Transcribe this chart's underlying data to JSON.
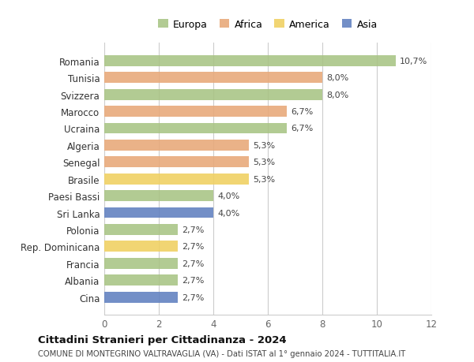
{
  "countries": [
    "Romania",
    "Tunisia",
    "Svizzera",
    "Marocco",
    "Ucraina",
    "Algeria",
    "Senegal",
    "Brasile",
    "Paesi Bassi",
    "Sri Lanka",
    "Polonia",
    "Rep. Dominicana",
    "Francia",
    "Albania",
    "Cina"
  ],
  "values": [
    10.7,
    8.0,
    8.0,
    6.7,
    6.7,
    5.3,
    5.3,
    5.3,
    4.0,
    4.0,
    2.7,
    2.7,
    2.7,
    2.7,
    2.7
  ],
  "labels": [
    "10,7%",
    "8,0%",
    "8,0%",
    "6,7%",
    "6,7%",
    "5,3%",
    "5,3%",
    "5,3%",
    "4,0%",
    "4,0%",
    "2,7%",
    "2,7%",
    "2,7%",
    "2,7%",
    "2,7%"
  ],
  "continents": [
    "Europa",
    "Africa",
    "Europa",
    "Africa",
    "Europa",
    "Africa",
    "Africa",
    "America",
    "Europa",
    "Asia",
    "Europa",
    "America",
    "Europa",
    "Europa",
    "Asia"
  ],
  "colors": {
    "Europa": "#a8c484",
    "Africa": "#e8a878",
    "America": "#f0d060",
    "Asia": "#6080c0"
  },
  "legend_order": [
    "Europa",
    "Africa",
    "America",
    "Asia"
  ],
  "title": "Cittadini Stranieri per Cittadinanza - 2024",
  "subtitle": "COMUNE DI MONTEGRINO VALTRAVAGLIA (VA) - Dati ISTAT al 1° gennaio 2024 - TUTTITALIA.IT",
  "xlim": [
    0,
    12
  ],
  "xticks": [
    0,
    2,
    4,
    6,
    8,
    10,
    12
  ],
  "bg_color": "#ffffff",
  "grid_color": "#cccccc"
}
